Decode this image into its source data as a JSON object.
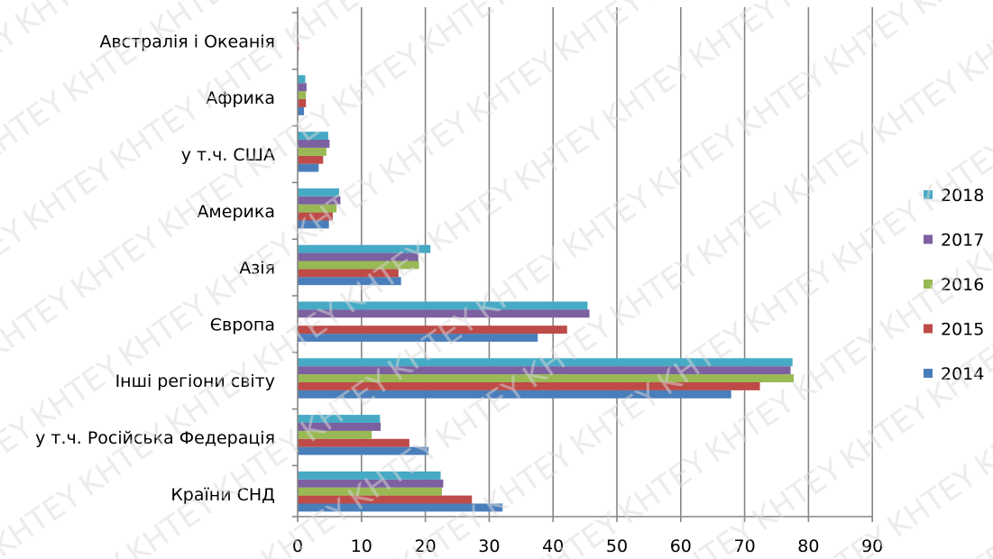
{
  "chart_data": {
    "type": "bar",
    "orientation": "horizontal",
    "title": "",
    "xlabel": "",
    "ylabel": "",
    "xlim": [
      0,
      90
    ],
    "x_ticks": [
      0,
      10,
      20,
      30,
      40,
      50,
      60,
      70,
      80,
      90
    ],
    "grid": true,
    "legend_position": "right",
    "categories": [
      "Країни СНД",
      "у т.ч. Російська Федерація",
      "Інші регіони світу",
      "Європа",
      "Азія",
      "Америка",
      "у т.ч. США",
      "Африка",
      "Австралія і Океанія"
    ],
    "series": [
      {
        "name": "2014",
        "color": "#4a7ebb",
        "values": [
          32.1,
          20.5,
          67.9,
          37.6,
          16.2,
          4.9,
          3.3,
          1.0,
          0.1
        ]
      },
      {
        "name": "2015",
        "color": "#be4b48",
        "values": [
          27.3,
          17.5,
          72.4,
          42.2,
          15.8,
          5.5,
          4.0,
          1.3,
          0.2
        ]
      },
      {
        "name": "2016",
        "color": "#98b954",
        "values": [
          22.6,
          11.6,
          77.7,
          0,
          19.0,
          6.1,
          4.5,
          1.3,
          0.1
        ]
      },
      {
        "name": "2017",
        "color": "#7d60a0",
        "values": [
          22.8,
          13.0,
          77.2,
          45.7,
          18.9,
          6.7,
          5.0,
          1.4,
          0.1
        ]
      },
      {
        "name": "2018",
        "color": "#46aac5",
        "values": [
          22.4,
          12.9,
          77.5,
          45.4,
          20.8,
          6.5,
          4.8,
          1.2,
          0.1
        ]
      }
    ]
  },
  "watermark": {
    "text": "KHTEY KNUTE"
  }
}
